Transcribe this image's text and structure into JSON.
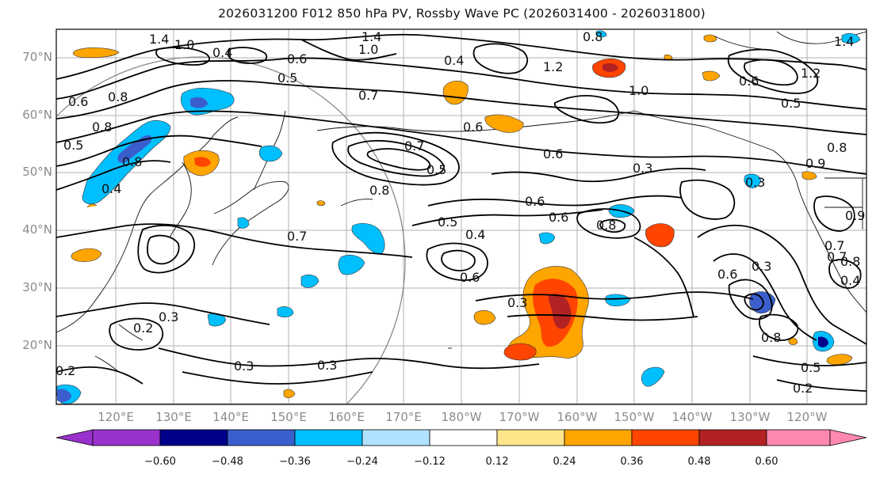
{
  "title": "2026031200 F012 850 hPa PV, Rossby Wave PC (2026031400 - 2026031800)",
  "lat_labels": [
    "70°N",
    "60°N",
    "50°N",
    "40°N",
    "30°N",
    "20°N"
  ],
  "lon_labels": [
    "120°E",
    "130°E",
    "140°E",
    "150°E",
    "160°E",
    "170°E",
    "180°W",
    "170°W",
    "160°W",
    "150°W",
    "140°W",
    "130°W",
    "120°W"
  ],
  "contour_labels": [
    "1.4",
    "1.0",
    "0.4",
    "0.6",
    "0.5",
    "0.8",
    "1.4",
    "1.0",
    "0.4",
    "0.8",
    "1.2",
    "1.0",
    "0.6",
    "0.5",
    "1.4",
    "1.2",
    "0.6",
    "0.8",
    "0.5",
    "0.8",
    "0.7",
    "0.6",
    "0.7",
    "0.5",
    "0.8",
    "0.6",
    "0.8",
    "0.3",
    "0.6",
    "0.4",
    "0.6",
    "0.5",
    "0.8",
    "0.3",
    "0.7",
    "0.4",
    "0.3",
    "0.6",
    "0.2",
    "0.3",
    "0.2",
    "0.3",
    "0.3",
    "0.8",
    "0.5",
    "0.2",
    "0.6",
    "0.8",
    "0.3",
    "0.9",
    "0.7",
    "0.4",
    "0.7",
    "0.9"
  ],
  "colorbar": {
    "ticks": [
      "−0.60",
      "−0.48",
      "−0.36",
      "−0.24",
      "−0.12",
      "0.12",
      "0.24",
      "0.36",
      "0.48",
      "0.60"
    ],
    "colors": [
      "#9932cc",
      "#00008b",
      "#3a5fcd",
      "#00bfff",
      "#b0e2ff",
      "#ffffff",
      "#ffe58a",
      "#ffa500",
      "#ff4500",
      "#b22222",
      "#ff88b0"
    ]
  }
}
